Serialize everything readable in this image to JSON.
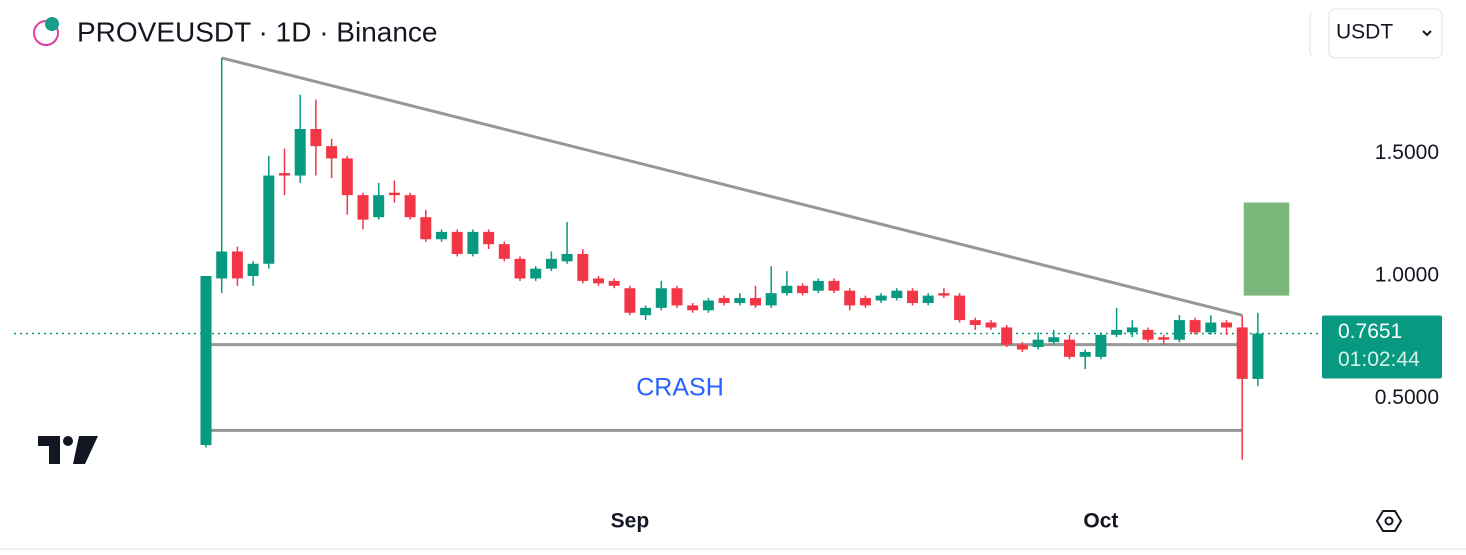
{
  "chart_data": {
    "type": "candlestick",
    "title": "PROVEUSDT · 1D · Binance",
    "currency": "USDT",
    "categories": [
      null,
      null,
      null,
      null,
      null,
      null,
      null,
      null,
      null,
      null,
      null,
      null,
      null,
      null,
      null,
      null,
      null,
      null,
      null,
      null,
      null,
      null,
      null,
      null,
      null,
      null,
      null,
      "Sep",
      null,
      null,
      null,
      null,
      null,
      null,
      null,
      null,
      null,
      null,
      null,
      null,
      null,
      null,
      null,
      null,
      null,
      null,
      null,
      null,
      null,
      null,
      null,
      null,
      null,
      null,
      null,
      null,
      null,
      "Oct",
      null,
      null,
      null,
      null,
      null,
      null,
      null,
      null,
      null,
      null
    ],
    "open": [
      0.31,
      0.99,
      1.1,
      1.0,
      1.05,
      1.42,
      1.41,
      1.6,
      1.53,
      1.48,
      1.33,
      1.24,
      1.34,
      1.33,
      1.24,
      1.15,
      1.18,
      1.09,
      1.18,
      1.13,
      1.07,
      0.99,
      1.03,
      1.06,
      1.09,
      0.99,
      0.98,
      0.95,
      0.84,
      0.87,
      0.95,
      0.88,
      0.86,
      0.91,
      0.89,
      0.91,
      0.88,
      0.93,
      0.96,
      0.94,
      0.98,
      0.94,
      0.91,
      0.9,
      0.91,
      0.94,
      0.89,
      0.93,
      0.92,
      0.82,
      0.81,
      0.79,
      0.72,
      0.71,
      0.73,
      0.74,
      0.67,
      0.67,
      0.76,
      0.77,
      0.78,
      0.75,
      0.74,
      0.82,
      0.77,
      0.81,
      0.79,
      0.58
    ],
    "high": [
      1.0,
      1.89,
      1.12,
      1.06,
      1.49,
      1.52,
      1.74,
      1.72,
      1.56,
      1.49,
      1.34,
      1.38,
      1.39,
      1.34,
      1.27,
      1.19,
      1.19,
      1.19,
      1.19,
      1.14,
      1.08,
      1.04,
      1.1,
      1.22,
      1.11,
      1.0,
      0.99,
      0.96,
      0.88,
      0.98,
      0.96,
      0.89,
      0.91,
      0.92,
      0.93,
      0.96,
      1.04,
      1.02,
      0.97,
      0.99,
      0.99,
      0.95,
      0.92,
      0.93,
      0.95,
      0.95,
      0.93,
      0.95,
      0.93,
      0.83,
      0.82,
      0.8,
      0.73,
      0.77,
      0.78,
      0.76,
      0.7,
      0.77,
      0.87,
      0.82,
      0.79,
      0.76,
      0.84,
      0.83,
      0.84,
      0.82,
      0.84,
      0.85
    ],
    "low": [
      0.3,
      0.93,
      0.96,
      0.96,
      1.03,
      1.33,
      1.38,
      1.41,
      1.4,
      1.25,
      1.19,
      1.23,
      1.3,
      1.23,
      1.14,
      1.14,
      1.08,
      1.08,
      1.11,
      1.06,
      0.98,
      0.98,
      1.02,
      1.05,
      0.97,
      0.96,
      0.95,
      0.84,
      0.82,
      0.86,
      0.87,
      0.85,
      0.85,
      0.88,
      0.88,
      0.87,
      0.87,
      0.92,
      0.92,
      0.93,
      0.93,
      0.86,
      0.87,
      0.89,
      0.9,
      0.88,
      0.88,
      0.91,
      0.81,
      0.78,
      0.78,
      0.71,
      0.69,
      0.7,
      0.72,
      0.66,
      0.62,
      0.66,
      0.75,
      0.75,
      0.73,
      0.72,
      0.73,
      0.76,
      0.76,
      0.76,
      0.25,
      0.55
    ],
    "close": [
      1.0,
      1.1,
      0.99,
      1.05,
      1.41,
      1.41,
      1.6,
      1.53,
      1.48,
      1.33,
      1.23,
      1.33,
      1.33,
      1.24,
      1.15,
      1.18,
      1.09,
      1.18,
      1.13,
      1.07,
      0.99,
      1.03,
      1.07,
      1.09,
      0.98,
      0.97,
      0.96,
      0.85,
      0.87,
      0.95,
      0.88,
      0.86,
      0.9,
      0.89,
      0.91,
      0.88,
      0.93,
      0.96,
      0.93,
      0.98,
      0.94,
      0.88,
      0.88,
      0.92,
      0.94,
      0.89,
      0.92,
      0.92,
      0.82,
      0.8,
      0.79,
      0.72,
      0.7,
      0.74,
      0.75,
      0.67,
      0.69,
      0.76,
      0.78,
      0.79,
      0.74,
      0.74,
      0.82,
      0.77,
      0.81,
      0.79,
      0.58,
      0.7651
    ],
    "up_color": "#089981",
    "down_color": "#f23645",
    "ylim": [
      0.1,
      2.1
    ],
    "yticks": [
      {
        "value": 0.5,
        "label": "0.5000"
      },
      {
        "value": 1.0,
        "label": "1.0000"
      },
      {
        "value": 1.5,
        "label": "1.5000"
      }
    ],
    "last_price": 0.7651,
    "countdown": "01:02:44",
    "trendline": {
      "x": [
        1,
        66
      ],
      "y": [
        1.89,
        0.84
      ]
    },
    "levels": [
      {
        "x": [
          0,
          66
        ],
        "y": 0.72
      },
      {
        "x": [
          0,
          66
        ],
        "y": 0.37
      }
    ],
    "box": {
      "x": [
        66.1,
        69
      ],
      "y": [
        0.92,
        1.3
      ],
      "color": "#7cb77c"
    },
    "annotation": "CRASH"
  }
}
